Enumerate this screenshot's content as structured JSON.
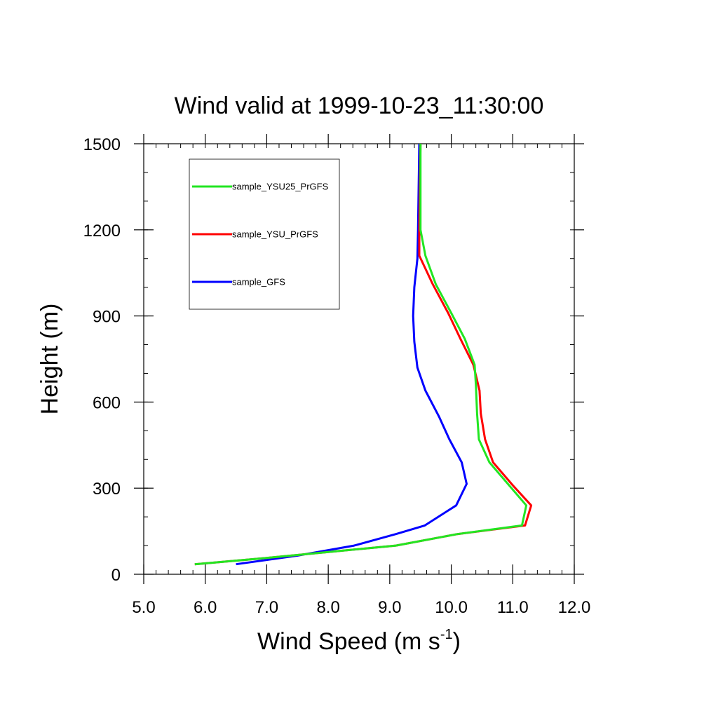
{
  "chart_data": {
    "type": "line",
    "title": "Wind valid at 1999-10-23_11:30:00",
    "xlabel": "Wind Speed (m s",
    "xlabel_superscript": "-1",
    "xlabel_suffix": ")",
    "ylabel": "Height (m)",
    "xlim": [
      5.0,
      12.0
    ],
    "ylim": [
      0,
      1500
    ],
    "x_ticks": [
      5.0,
      6.0,
      7.0,
      8.0,
      9.0,
      10.0,
      11.0,
      12.0
    ],
    "x_tick_labels": [
      "5.0",
      "6.0",
      "7.0",
      "8.0",
      "9.0",
      "10.0",
      "11.0",
      "12.0"
    ],
    "y_ticks": [
      0,
      300,
      600,
      900,
      1200,
      1500
    ],
    "y_tick_labels": [
      "0",
      "300",
      "600",
      "900",
      "1200",
      "1500"
    ],
    "grid": false,
    "legend_position": "top-left",
    "series": [
      {
        "name": "sample_YSU25_PrGFS",
        "color": "#22e622",
        "points": [
          [
            5.83,
            35
          ],
          [
            7.0,
            57
          ],
          [
            9.1,
            100
          ],
          [
            10.1,
            140
          ],
          [
            11.15,
            170
          ],
          [
            11.22,
            240
          ],
          [
            10.62,
            390
          ],
          [
            10.45,
            470
          ],
          [
            10.42,
            560
          ],
          [
            10.4,
            660
          ],
          [
            10.38,
            730
          ],
          [
            10.22,
            820
          ],
          [
            10.0,
            910
          ],
          [
            9.75,
            1010
          ],
          [
            9.58,
            1110
          ],
          [
            9.5,
            1200
          ],
          [
            9.5,
            1350
          ],
          [
            9.5,
            1500
          ]
        ]
      },
      {
        "name": "sample_YSU_PrGFS",
        "color": "#ff0000",
        "points": [
          [
            5.83,
            35
          ],
          [
            7.0,
            57
          ],
          [
            9.1,
            100
          ],
          [
            10.1,
            140
          ],
          [
            11.2,
            170
          ],
          [
            11.3,
            240
          ],
          [
            11.0,
            310
          ],
          [
            10.68,
            390
          ],
          [
            10.55,
            470
          ],
          [
            10.48,
            560
          ],
          [
            10.46,
            640
          ],
          [
            10.36,
            730
          ],
          [
            10.15,
            820
          ],
          [
            9.95,
            910
          ],
          [
            9.7,
            1010
          ],
          [
            9.48,
            1110
          ],
          [
            9.48,
            1200
          ],
          [
            9.49,
            1350
          ],
          [
            9.5,
            1500
          ]
        ]
      },
      {
        "name": "sample_GFS",
        "color": "#0000ff",
        "points": [
          [
            6.5,
            35
          ],
          [
            7.5,
            65
          ],
          [
            8.42,
            100
          ],
          [
            9.1,
            140
          ],
          [
            9.57,
            170
          ],
          [
            10.08,
            240
          ],
          [
            10.25,
            315
          ],
          [
            10.17,
            390
          ],
          [
            9.97,
            470
          ],
          [
            9.8,
            550
          ],
          [
            9.58,
            640
          ],
          [
            9.45,
            720
          ],
          [
            9.4,
            810
          ],
          [
            9.38,
            900
          ],
          [
            9.4,
            1000
          ],
          [
            9.45,
            1100
          ],
          [
            9.46,
            1200
          ],
          [
            9.47,
            1350
          ],
          [
            9.48,
            1500
          ]
        ]
      }
    ]
  }
}
